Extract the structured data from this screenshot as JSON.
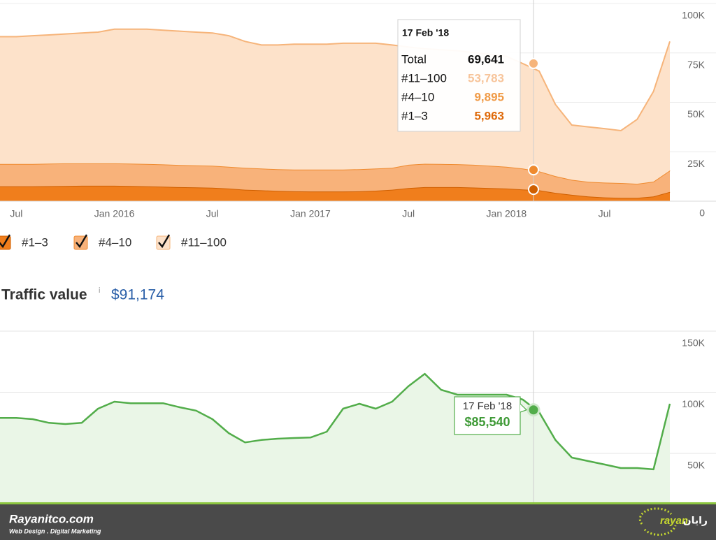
{
  "chart_data": [
    {
      "type": "area",
      "stacked": true,
      "categories": [
        null,
        "Jul",
        null,
        null,
        null,
        null,
        null,
        "Jan 2016",
        null,
        null,
        null,
        null,
        null,
        "Jul",
        null,
        null,
        null,
        null,
        null,
        "Jan 2017",
        null,
        null,
        null,
        null,
        null,
        "Jul",
        null,
        null,
        null,
        null,
        null,
        "Jan 2018",
        null,
        null,
        null,
        null,
        null,
        "Jul",
        null,
        null,
        null,
        null
      ],
      "series": [
        {
          "name": "#1–3",
          "color": "#f07e1c",
          "line_color": "#cf5f00",
          "values": [
            7500,
            7500,
            7500,
            7600,
            7700,
            7800,
            7800,
            7800,
            7700,
            7500,
            7300,
            7100,
            7000,
            6800,
            6400,
            5800,
            5500,
            5200,
            5000,
            4900,
            4900,
            4900,
            5000,
            5300,
            5800,
            6600,
            7100,
            7100,
            7100,
            6900,
            6600,
            6400,
            5900,
            5500,
            4200,
            3200,
            2400,
            1900,
            1700,
            1700,
            2400,
            4700
          ]
        },
        {
          "name": "#4–10",
          "color": "#f8b27a",
          "line_color": "#ef8a2e",
          "values": [
            11300,
            11300,
            11300,
            11400,
            11400,
            11300,
            11300,
            11300,
            11300,
            11300,
            11300,
            11200,
            11100,
            11100,
            11000,
            11100,
            11000,
            11000,
            11000,
            11100,
            11100,
            11100,
            11200,
            11200,
            11100,
            11800,
            11800,
            11700,
            11600,
            11500,
            11300,
            11000,
            10600,
            9600,
            8500,
            7600,
            7400,
            7500,
            7500,
            7100,
            7500,
            10800
          ]
        },
        {
          "name": "#11–100",
          "color": "#fde2ca",
          "line_color": "#f6b47a",
          "values": [
            64400,
            64400,
            64900,
            65100,
            65500,
            66000,
            66400,
            67900,
            68000,
            68200,
            67900,
            67700,
            67400,
            67200,
            66300,
            63900,
            62500,
            62800,
            63400,
            63400,
            63400,
            63900,
            63700,
            63400,
            62100,
            59600,
            58200,
            57800,
            57400,
            56800,
            56400,
            55900,
            53100,
            50700,
            36200,
            27700,
            27800,
            27300,
            26500,
            32600,
            45600,
            65300
          ]
        }
      ],
      "ylim": [
        0,
        100000
      ],
      "yticks": [
        0,
        {
          "value": 25000,
          "label": "25K"
        },
        {
          "value": 50000,
          "label": "50K"
        },
        {
          "value": 75000,
          "label": "75K"
        },
        {
          "value": 100000,
          "label": "100K"
        }
      ],
      "grid": true,
      "legend": "bottom",
      "tooltip": {
        "title": "17 Feb '18",
        "items": [
          {
            "name": "Total",
            "value": 69641,
            "label": "69,641",
            "color": "#111111"
          },
          {
            "name": "#11–100",
            "value": 53783,
            "label": "53,783",
            "color": "#f7c49a"
          },
          {
            "name": "#4–10",
            "value": 9895,
            "label": "9,895",
            "color": "#f09a46"
          },
          {
            "name": "#1–3",
            "value": 5963,
            "label": "5,963",
            "color": "#df6a0a"
          }
        ]
      }
    },
    {
      "type": "line",
      "title": "Traffic value",
      "title_icon": "i",
      "subtitle": "$91,174",
      "categories": [
        null,
        null,
        null,
        null,
        null,
        null,
        null,
        null,
        null,
        null,
        null,
        null,
        null,
        null,
        null,
        null,
        null,
        null,
        null,
        null,
        null,
        null,
        null,
        null,
        null,
        null,
        null,
        null,
        null,
        null,
        null,
        null,
        null,
        null,
        null,
        null,
        null,
        null,
        null,
        null,
        null,
        null
      ],
      "values": [
        79000,
        79000,
        78000,
        75000,
        74000,
        75000,
        86600,
        92300,
        91000,
        91000,
        91000,
        87700,
        85000,
        78000,
        66600,
        59000,
        61000,
        62000,
        62600,
        63000,
        67700,
        86600,
        90600,
        86600,
        92300,
        104900,
        115100,
        102000,
        98000,
        98000,
        98000,
        98000,
        94000,
        83700,
        60900,
        46600,
        43700,
        40900,
        38000,
        38000,
        36900,
        90600
      ],
      "color": "#52ad4a",
      "fill": "#eaf6e7",
      "ylim": [
        10000,
        150000
      ],
      "yticks": [
        {
          "value": 50000,
          "label": "50K"
        },
        {
          "value": 100000,
          "label": "100K"
        },
        {
          "value": 150000,
          "label": "150K"
        }
      ],
      "grid": true,
      "tooltip": {
        "title": "17 Feb '18",
        "value": 85540,
        "label": "$85,540"
      }
    }
  ],
  "footer": {
    "brand": "Rayanitco.com",
    "tagline": "Web Design . Digital Marketing",
    "logo_latin": "rayan",
    "logo_persian": "رایان"
  }
}
